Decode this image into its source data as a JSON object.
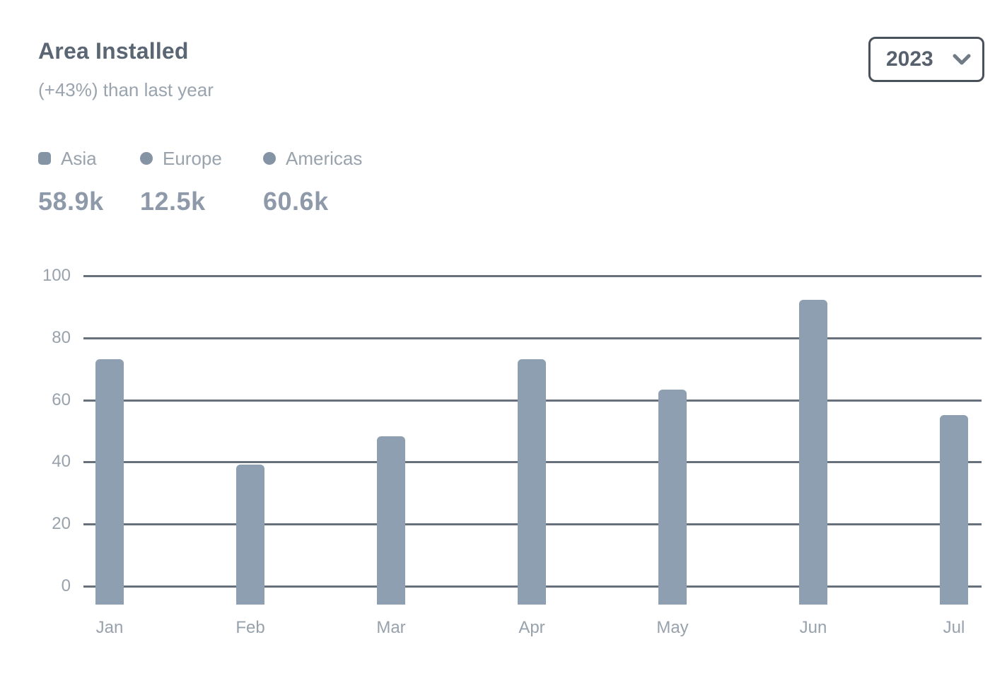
{
  "header": {
    "title": "Area Installed",
    "subtitle": "(+43%) than last year",
    "year_select": {
      "value": "2023",
      "icon": "chevron-down-icon"
    }
  },
  "legend": {
    "items": [
      {
        "label": "Asia",
        "value": "58.9k",
        "marker": "square"
      },
      {
        "label": "Europe",
        "value": "12.5k",
        "marker": "circle"
      },
      {
        "label": "Americas",
        "value": "60.6k",
        "marker": "circle"
      }
    ]
  },
  "chart_data": {
    "type": "bar",
    "title": "Area Installed",
    "subtitle": "(+43%) than last year",
    "categories": [
      "Jan",
      "Feb",
      "Mar",
      "Apr",
      "May",
      "Jun",
      "Jul"
    ],
    "values": [
      73,
      39,
      48,
      73,
      63,
      92,
      55
    ],
    "xlabel": "",
    "ylabel": "",
    "ylim": [
      0,
      100
    ],
    "yticks": [
      0,
      20,
      40,
      60,
      80,
      100
    ],
    "grid": true,
    "legend_position": "top-left",
    "legend_entries": [
      "Asia",
      "Europe",
      "Americas"
    ],
    "bar_color": "#8d9fb0"
  },
  "colors": {
    "bar": "#8d9fb0",
    "gridline": "#68717b",
    "title_text": "#5a6673",
    "muted_text": "#99a3ad",
    "value_text": "#8e9aa9",
    "select_border": "#49515b"
  }
}
